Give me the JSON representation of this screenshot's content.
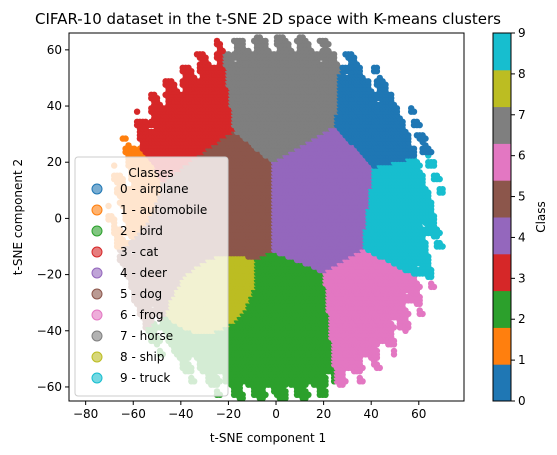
{
  "chart_data": {
    "type": "scatter",
    "title": "CIFAR-10 dataset in the t-SNE 2D space with K-means clusters",
    "xlabel": "t-SNE component 1",
    "ylabel": "t-SNE component 2",
    "xlim": [
      -87,
      79
    ],
    "ylim": [
      -65,
      66
    ],
    "xticks": [
      "−80",
      "−60",
      "−40",
      "−20",
      "0",
      "20",
      "40",
      "60"
    ],
    "xtick_values": [
      -80,
      -60,
      -40,
      -20,
      0,
      20,
      40,
      60
    ],
    "yticks": [
      "−60",
      "−40",
      "−20",
      "0",
      "20",
      "40",
      "60"
    ],
    "ytick_values": [
      -60,
      -40,
      -20,
      0,
      20,
      40,
      60
    ],
    "grid": false,
    "colormap": [
      "#1f77b4",
      "#ff7f0e",
      "#2ca02c",
      "#d62728",
      "#9467bd",
      "#8c564b",
      "#e377c2",
      "#7f7f7f",
      "#bcbd22",
      "#17becf"
    ],
    "clusters": [
      {
        "label": 0,
        "center": [
          50,
          40
        ],
        "extent": [
          28,
          68,
          18,
          62
        ]
      },
      {
        "label": 1,
        "center": [
          -62,
          15
        ],
        "extent": [
          -66,
          -58,
          5,
          25
        ]
      },
      {
        "label": 2,
        "center": [
          3,
          -40
        ],
        "extent": [
          -20,
          25,
          -60,
          -16
        ]
      },
      {
        "label": 3,
        "center": [
          -40,
          37
        ],
        "extent": [
          -62,
          -16,
          12,
          60
        ]
      },
      {
        "label": 4,
        "center": [
          20,
          8
        ],
        "extent": [
          2,
          38,
          -22,
          28
        ]
      },
      {
        "label": 5,
        "center": [
          -23,
          9
        ],
        "extent": [
          -35,
          -2,
          -22,
          30
        ]
      },
      {
        "label": 6,
        "center": [
          42,
          -35
        ],
        "extent": [
          20,
          60,
          -58,
          -12
        ]
      },
      {
        "label": 7,
        "center": [
          2,
          44
        ],
        "extent": [
          -18,
          25,
          25,
          62
        ]
      },
      {
        "label": 8,
        "center": [
          -20,
          -25
        ],
        "extent": [
          -28,
          -14,
          -38,
          -15
        ]
      },
      {
        "label": 9,
        "center": [
          58,
          2
        ],
        "extent": [
          40,
          72,
          -25,
          32
        ]
      }
    ],
    "legend": {
      "title": "Classes",
      "placement": "lower-left",
      "entries": [
        "0 - airplane",
        "1 - automobile",
        "2 - bird",
        "3 - cat",
        "4 - deer",
        "5 - dog",
        "6 - frog",
        "7 - horse",
        "8 - ship",
        "9 - truck"
      ]
    },
    "colorbar": {
      "label": "Class",
      "range": [
        0,
        9
      ],
      "ticks": [
        "0",
        "1",
        "2",
        "3",
        "4",
        "5",
        "6",
        "7",
        "8",
        "9"
      ]
    }
  }
}
